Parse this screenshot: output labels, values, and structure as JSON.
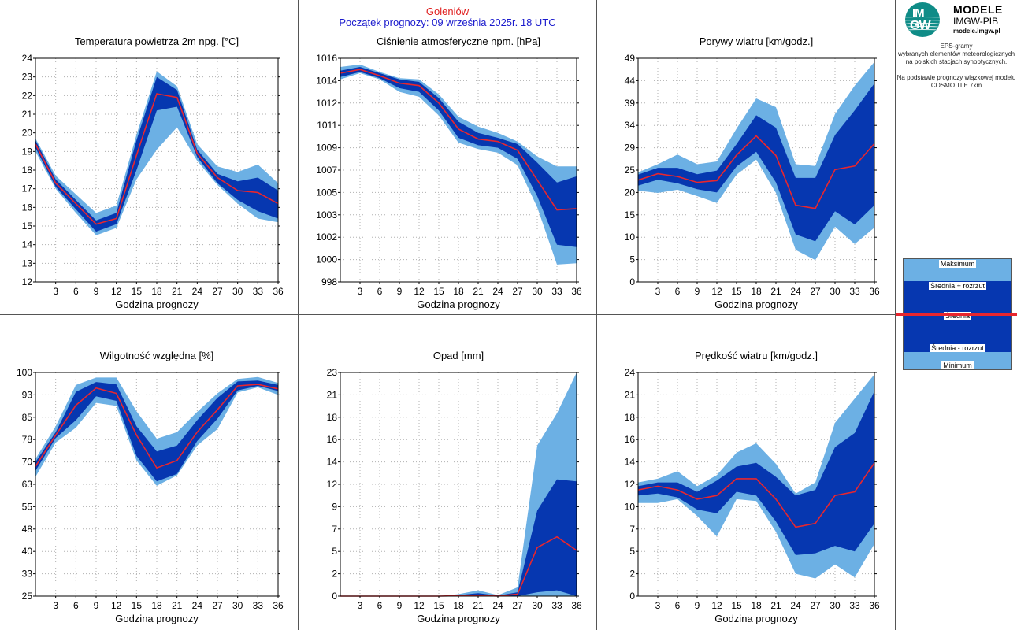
{
  "header": {
    "station": "Goleniów",
    "forecast_start": "Początek prognozy: 09 września 2025r. 18 UTC"
  },
  "branding": {
    "logo_line1": "IM",
    "logo_line2": "GW",
    "title": "MODELE",
    "org": "IMGW-PIB",
    "url": "modele.imgw.pl"
  },
  "description": {
    "line1": "EPS-gramy",
    "line2": "wybranych elementów meteorologicznych",
    "line3": "na polskich stacjach  synoptycznych.",
    "line4": "Na podstawie prognozy wiązkowej modelu",
    "line5": "COSMO TLE 7km"
  },
  "legend": {
    "max": "Maksimum",
    "mean_plus": "Średnia + rozrzut",
    "mean": "Średnia",
    "mean_minus": "Średnia - rozrzut",
    "min": "Minimum"
  },
  "colors": {
    "outer_band": "#6cb0e4",
    "inner_band": "#0637b0",
    "mean_line": "#e8262e",
    "grid": "#b0b0b0"
  },
  "chart_data": [
    {
      "type": "area",
      "title": "Temperatura powietrza 2m npg. [°C]",
      "xlabel": "Godzina prognozy",
      "x": [
        0,
        3,
        6,
        9,
        12,
        15,
        18,
        21,
        24,
        27,
        30,
        33,
        36
      ],
      "xticks": [
        "3",
        "6",
        "9",
        "12",
        "15",
        "18",
        "21",
        "24",
        "27",
        "30",
        "33",
        "36"
      ],
      "ylim": [
        12,
        24
      ],
      "yticks": [
        "12",
        "13",
        "14",
        "15",
        "16",
        "17",
        "18",
        "19",
        "20",
        "21",
        "22",
        "23",
        "24"
      ],
      "series": [
        {
          "name": "Maksimum",
          "values": [
            19.7,
            17.7,
            16.7,
            15.7,
            16.1,
            19.9,
            23.3,
            22.5,
            19.4,
            18.2,
            17.9,
            18.3,
            17.3
          ]
        },
        {
          "name": "Średnia + rozrzut",
          "values": [
            19.6,
            17.5,
            16.4,
            15.3,
            15.7,
            19.6,
            23.0,
            22.3,
            19.1,
            17.8,
            17.4,
            17.6,
            16.9
          ]
        },
        {
          "name": "Średnia",
          "values": [
            19.4,
            17.3,
            16.2,
            15.1,
            15.4,
            18.8,
            22.1,
            21.9,
            18.9,
            17.6,
            16.9,
            16.8,
            16.2
          ]
        },
        {
          "name": "Średnia - rozrzut",
          "values": [
            19.2,
            17.1,
            15.9,
            14.7,
            15.1,
            18.0,
            21.2,
            21.4,
            18.7,
            17.3,
            16.4,
            15.8,
            15.4
          ]
        },
        {
          "name": "Minimum",
          "values": [
            19.0,
            17.0,
            15.7,
            14.5,
            14.9,
            17.5,
            19.1,
            20.3,
            18.5,
            17.2,
            16.2,
            15.4,
            15.2
          ]
        }
      ]
    },
    {
      "type": "area",
      "title": "Ciśnienie atmosferyczne npm. [hPa]",
      "xlabel": "Godzina prognozy",
      "x": [
        0,
        3,
        6,
        9,
        12,
        15,
        18,
        21,
        24,
        27,
        30,
        33,
        36
      ],
      "xticks": [
        "3",
        "6",
        "9",
        "12",
        "15",
        "18",
        "21",
        "24",
        "27",
        "30",
        "33",
        "36"
      ],
      "ylim": [
        998,
        1016
      ],
      "yticks": [
        "998",
        "1000",
        "1002",
        "1003",
        "1005",
        "1007",
        "1009",
        "1011",
        "1012",
        "1014",
        "1016"
      ],
      "series": [
        {
          "name": "Maksimum",
          "values": [
            1015.3,
            1015.5,
            1014.9,
            1014.4,
            1014.3,
            1013.1,
            1011.3,
            1010.5,
            1010.0,
            1009.3,
            1008.1,
            1007.3,
            1007.3
          ]
        },
        {
          "name": "Średnia + rozrzut",
          "values": [
            1015.0,
            1015.3,
            1014.8,
            1014.3,
            1014.1,
            1012.8,
            1010.9,
            1010.0,
            1009.6,
            1009.1,
            1007.6,
            1006.0,
            1006.5
          ]
        },
        {
          "name": "Średnia",
          "values": [
            1014.8,
            1015.1,
            1014.6,
            1014.0,
            1013.8,
            1012.4,
            1010.3,
            1009.5,
            1009.3,
            1008.6,
            1006.2,
            1003.8,
            1003.9
          ]
        },
        {
          "name": "Średnia - rozrzut",
          "values": [
            1014.5,
            1014.9,
            1014.4,
            1013.6,
            1013.3,
            1011.8,
            1009.6,
            1009.0,
            1008.8,
            1007.9,
            1004.9,
            1001.0,
            1000.8
          ]
        },
        {
          "name": "Minimum",
          "values": [
            1014.3,
            1014.8,
            1014.3,
            1013.3,
            1012.9,
            1011.4,
            1009.2,
            1008.7,
            1008.4,
            1007.4,
            1004.0,
            999.4,
            999.5
          ]
        }
      ]
    },
    {
      "type": "area",
      "title": "Porywy wiatru [km/godz.]",
      "xlabel": "Godzina prognozy",
      "x": [
        0,
        3,
        6,
        9,
        12,
        15,
        18,
        21,
        24,
        27,
        30,
        33,
        36
      ],
      "xticks": [
        "3",
        "6",
        "9",
        "12",
        "15",
        "18",
        "21",
        "24",
        "27",
        "30",
        "33",
        "36"
      ],
      "ylim": [
        0,
        49
      ],
      "yticks": [
        "0",
        "5",
        "10",
        "15",
        "20",
        "25",
        "29",
        "34",
        "39",
        "44",
        "49"
      ],
      "series": [
        {
          "name": "Maksimum",
          "values": [
            24.0,
            25.8,
            27.9,
            25.8,
            26.4,
            33.6,
            40.2,
            38.3,
            25.8,
            25.4,
            36.8,
            43.0,
            48.2
          ]
        },
        {
          "name": "Średnia + rozrzut",
          "values": [
            23.5,
            25.0,
            25.0,
            23.6,
            24.4,
            30.2,
            36.5,
            33.8,
            22.8,
            22.8,
            32.2,
            37.6,
            43.5
          ]
        },
        {
          "name": "Średnia",
          "values": [
            22.3,
            23.7,
            23.1,
            21.8,
            22.2,
            27.8,
            32.0,
            27.7,
            16.8,
            16.1,
            24.6,
            25.4,
            30.3
          ]
        },
        {
          "name": "Średnia - rozrzut",
          "values": [
            21.1,
            22.4,
            21.6,
            20.3,
            19.6,
            25.3,
            28.5,
            21.8,
            10.4,
            8.9,
            15.5,
            12.6,
            16.8
          ]
        },
        {
          "name": "Minimum",
          "values": [
            20.0,
            19.5,
            20.2,
            18.8,
            17.3,
            23.5,
            26.8,
            19.5,
            7.0,
            4.8,
            12.1,
            8.3,
            11.9
          ]
        }
      ]
    },
    {
      "type": "area",
      "title": "Wilgotność względna [%]",
      "xlabel": "Godzina prognozy",
      "x": [
        0,
        3,
        6,
        9,
        12,
        15,
        18,
        21,
        24,
        27,
        30,
        33,
        36
      ],
      "xticks": [
        "3",
        "6",
        "9",
        "12",
        "15",
        "18",
        "21",
        "24",
        "27",
        "30",
        "33",
        "36"
      ],
      "ylim": [
        25,
        100
      ],
      "yticks": [
        "25",
        "33",
        "40",
        "48",
        "55",
        "63",
        "70",
        "78",
        "85",
        "93",
        "100"
      ],
      "series": [
        {
          "name": "Maksimum",
          "values": [
            71.0,
            82.0,
            95.8,
            98.3,
            98.3,
            87.0,
            77.8,
            80.0,
            86.8,
            93.0,
            97.8,
            98.5,
            96.5
          ]
        },
        {
          "name": "Średnia + rozrzut",
          "values": [
            70.0,
            80.0,
            93.5,
            96.8,
            96.0,
            82.0,
            73.5,
            75.5,
            84.0,
            91.5,
            97.0,
            97.3,
            95.8
          ]
        },
        {
          "name": "Średnia",
          "values": [
            68.5,
            79.0,
            89.0,
            94.8,
            93.0,
            79.0,
            68.0,
            70.5,
            80.0,
            87.5,
            95.5,
            96.0,
            94.5
          ]
        },
        {
          "name": "Średnia - rozrzut",
          "values": [
            67.0,
            78.0,
            84.0,
            92.0,
            90.5,
            72.0,
            63.5,
            66.0,
            77.0,
            84.5,
            94.0,
            95.5,
            93.8
          ]
        },
        {
          "name": "Minimum",
          "values": [
            65.0,
            76.5,
            81.5,
            89.8,
            88.8,
            70.5,
            62.0,
            65.5,
            75.5,
            81.0,
            93.3,
            95.0,
            92.5
          ]
        }
      ]
    },
    {
      "type": "area",
      "title": "Opad [mm]",
      "xlabel": "Godzina prognozy",
      "x": [
        0,
        3,
        6,
        9,
        12,
        15,
        18,
        21,
        24,
        27,
        30,
        33,
        36
      ],
      "xticks": [
        "3",
        "6",
        "9",
        "12",
        "15",
        "18",
        "21",
        "24",
        "27",
        "30",
        "33",
        "36"
      ],
      "ylim": [
        0,
        23
      ],
      "yticks": [
        "0",
        "2",
        "5",
        "7",
        "9",
        "12",
        "14",
        "16",
        "18",
        "21",
        "23"
      ],
      "series": [
        {
          "name": "Maksimum",
          "values": [
            0,
            0,
            0,
            0,
            0,
            0,
            0.2,
            0.6,
            0.1,
            0.9,
            15.5,
            18.8,
            23.0
          ]
        },
        {
          "name": "Średnia + rozrzut",
          "values": [
            0,
            0,
            0,
            0,
            0,
            0,
            0.1,
            0.3,
            0.05,
            0.4,
            8.8,
            12.0,
            11.8
          ]
        },
        {
          "name": "Średnia",
          "values": [
            0,
            0,
            0,
            0,
            0,
            0,
            0.05,
            0.1,
            0,
            0.2,
            5.0,
            6.1,
            4.7
          ]
        },
        {
          "name": "Średnia - rozrzut",
          "values": [
            0,
            0,
            0,
            0,
            0,
            0,
            0,
            0,
            0,
            0,
            0.4,
            0.6,
            0
          ]
        },
        {
          "name": "Minimum",
          "values": [
            0,
            0,
            0,
            0,
            0,
            0,
            0,
            0,
            0,
            0,
            0,
            0,
            0
          ]
        }
      ]
    },
    {
      "type": "area",
      "title": "Prędkość wiatru [km/godz.]",
      "xlabel": "Godzina prognozy",
      "x": [
        0,
        3,
        6,
        9,
        12,
        15,
        18,
        21,
        24,
        27,
        30,
        33,
        36
      ],
      "xticks": [
        "3",
        "6",
        "9",
        "12",
        "15",
        "18",
        "21",
        "24",
        "27",
        "30",
        "33",
        "36"
      ],
      "ylim": [
        0,
        24
      ],
      "yticks": [
        "0",
        "2",
        "5",
        "7",
        "10",
        "12",
        "14",
        "16",
        "18",
        "21",
        "24"
      ],
      "series": [
        {
          "name": "Maksimum",
          "values": [
            12.2,
            12.6,
            13.4,
            11.8,
            13.0,
            15.4,
            16.4,
            14.2,
            11.0,
            12.2,
            18.6,
            21.2,
            23.8
          ]
        },
        {
          "name": "Średnia + rozrzut",
          "values": [
            11.8,
            12.2,
            12.2,
            11.2,
            12.4,
            13.9,
            14.3,
            12.8,
            10.8,
            11.4,
            16.0,
            17.5,
            22.0
          ]
        },
        {
          "name": "Średnia",
          "values": [
            11.4,
            11.8,
            11.4,
            10.4,
            10.8,
            12.6,
            12.6,
            10.4,
            7.4,
            7.8,
            10.8,
            11.2,
            14.3
          ]
        },
        {
          "name": "Średnia - rozrzut",
          "values": [
            10.8,
            11.0,
            10.6,
            9.3,
            8.9,
            11.2,
            10.8,
            8.0,
            4.4,
            4.6,
            5.4,
            4.8,
            7.8
          ]
        },
        {
          "name": "Minimum",
          "values": [
            10.0,
            10.0,
            10.4,
            8.6,
            6.4,
            10.4,
            10.2,
            6.9,
            2.4,
            1.9,
            3.4,
            2.0,
            5.6
          ]
        }
      ]
    }
  ]
}
